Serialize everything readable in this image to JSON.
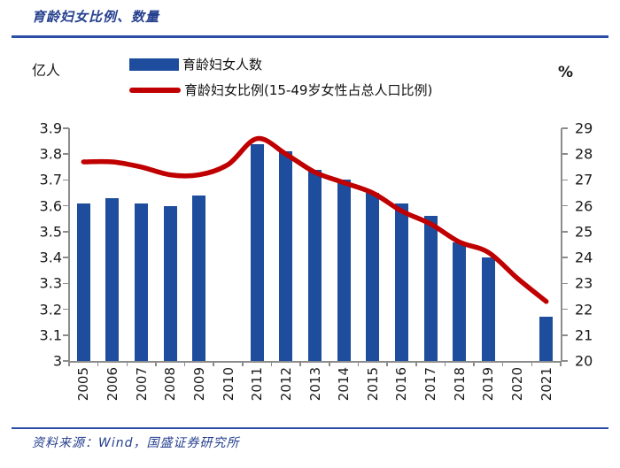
{
  "title": "育龄妇女比例、数量",
  "unit_left": "亿人",
  "unit_right": "%",
  "legend": [
    {
      "label": "育龄妇女人数",
      "type": "bar",
      "color": "#1e4d9e"
    },
    {
      "label": "育龄妇女比例(15-49岁女性占总人口比例)",
      "type": "line",
      "color": "#c00000"
    }
  ],
  "source": "资料来源：Wind，国盛证券研究所",
  "colors": {
    "bar_blue": "#1e4d9e",
    "line_red": "#c00000",
    "navy_text": "#26408f",
    "rule_navy": "#2a4da6",
    "axis_gray": "#8c8c8c",
    "label_black": "#1a1a1a"
  },
  "chart_data": {
    "type": "bar+line combo",
    "title": "育龄妇女比例、数量",
    "categories": [
      "2005",
      "2006",
      "2007",
      "2008",
      "2009",
      "2010",
      "2011",
      "2012",
      "2013",
      "2014",
      "2015",
      "2016",
      "2017",
      "2018",
      "2019",
      "2020",
      "2021"
    ],
    "series": [
      {
        "name": "育龄妇女人数",
        "type": "bar",
        "axis": "left",
        "unit": "亿人",
        "values": [
          3.61,
          3.63,
          3.61,
          3.6,
          3.64,
          null,
          3.84,
          3.81,
          3.74,
          3.7,
          3.65,
          3.61,
          3.56,
          3.46,
          3.4,
          null,
          3.17
        ]
      },
      {
        "name": "育龄妇女比例(15-49岁女性占总人口比例)",
        "type": "line",
        "axis": "right",
        "unit": "%",
        "values": [
          27.7,
          27.7,
          27.5,
          27.2,
          27.2,
          27.6,
          28.6,
          28.0,
          27.3,
          26.9,
          26.5,
          25.8,
          25.3,
          24.6,
          24.2,
          23.2,
          22.3
        ]
      }
    ],
    "left_axis": {
      "label": "亿人",
      "min": 3,
      "max": 3.9,
      "ticks": [
        "3.9",
        "3.8",
        "3.7",
        "3.6",
        "3.5",
        "3.4",
        "3.3",
        "3.2",
        "3.1",
        "3"
      ]
    },
    "right_axis": {
      "label": "%",
      "min": 20,
      "max": 29,
      "ticks": [
        "29",
        "28",
        "27",
        "26",
        "25",
        "24",
        "23",
        "22",
        "21",
        "20"
      ]
    },
    "grid": "off",
    "legend_position": "top-center"
  }
}
